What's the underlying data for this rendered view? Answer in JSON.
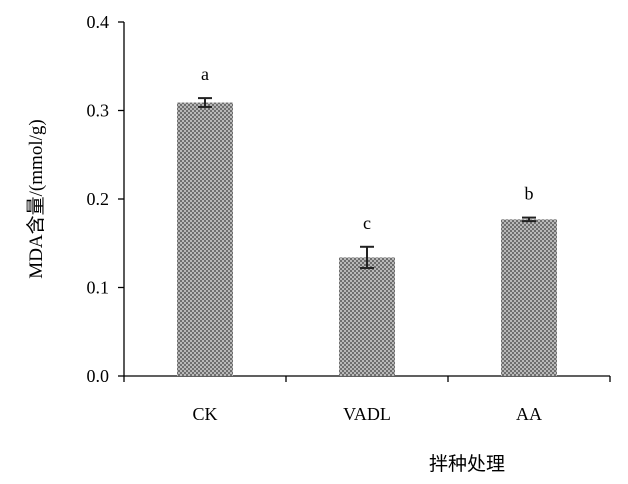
{
  "chart_data": {
    "type": "bar",
    "title": "",
    "xlabel": "拌种处理",
    "ylabel": "MDA含量/(mmol/g)",
    "categories": [
      "CK",
      "VADL",
      "AA"
    ],
    "values": [
      0.309,
      0.134,
      0.177
    ],
    "errors": [
      0.005,
      0.012,
      0.002
    ],
    "significance_letters": [
      "a",
      "c",
      "b"
    ],
    "yticks": [
      "0.0",
      "0.1",
      "0.2",
      "0.3",
      "0.4"
    ],
    "ylim": [
      0,
      0.4
    ],
    "grid": false,
    "legend": "none",
    "bar_color": "#9a9a9a",
    "bar_pattern": "crosshatch"
  }
}
